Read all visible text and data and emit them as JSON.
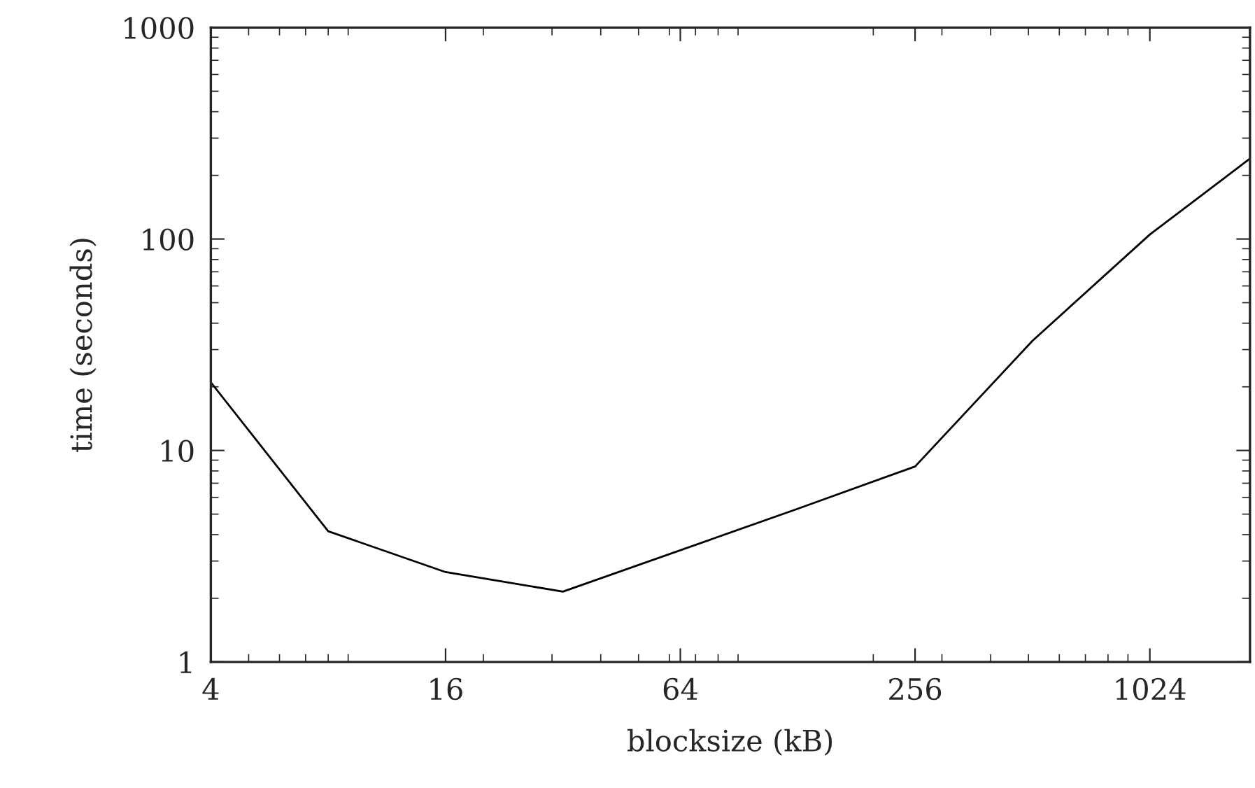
{
  "chart_data": {
    "type": "line",
    "xlabel": "blocksize (kB)",
    "ylabel": "time (seconds)",
    "x": [
      4,
      8,
      16,
      32,
      128,
      256,
      512,
      1024,
      1850
    ],
    "series": [
      {
        "color": "#000000",
        "values": [
          21,
          4.15,
          2.66,
          2.15,
          5.3,
          8.4,
          33,
          105,
          240
        ]
      }
    ],
    "log": "xy",
    "xlim": [
      4,
      1850
    ],
    "ylim": [
      1,
      1000
    ],
    "xticks": [
      4,
      16,
      64,
      256,
      1024
    ],
    "yticks": [
      1,
      10,
      100,
      1000
    ],
    "grid": false,
    "legend": false,
    "marker": "none",
    "line_style": "solid"
  }
}
